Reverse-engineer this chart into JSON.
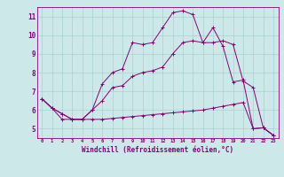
{
  "xlabel": "Windchill (Refroidissement éolien,°C)",
  "xlim": [
    -0.5,
    23.5
  ],
  "ylim": [
    4.5,
    11.5
  ],
  "xticks": [
    0,
    1,
    2,
    3,
    4,
    5,
    6,
    7,
    8,
    9,
    10,
    11,
    12,
    13,
    14,
    15,
    16,
    17,
    18,
    19,
    20,
    21,
    22,
    23
  ],
  "yticks": [
    5,
    6,
    7,
    8,
    9,
    10,
    11
  ],
  "bg_color": "#cce8e8",
  "line_color": "#880077",
  "line1_x": [
    0,
    1,
    2,
    3,
    4,
    5,
    6,
    7,
    8,
    9,
    10,
    11,
    12,
    13,
    14,
    15,
    16,
    17,
    18,
    19,
    20,
    21,
    22,
    23
  ],
  "line1_y": [
    6.6,
    6.1,
    5.5,
    5.5,
    5.5,
    5.5,
    5.5,
    5.55,
    5.6,
    5.65,
    5.7,
    5.75,
    5.8,
    5.85,
    5.9,
    5.95,
    6.0,
    6.1,
    6.2,
    6.3,
    6.4,
    5.0,
    5.05,
    4.65
  ],
  "line2_x": [
    0,
    1,
    2,
    3,
    4,
    5,
    6,
    7,
    8,
    9,
    10,
    11,
    12,
    13,
    14,
    15,
    16,
    17,
    18,
    19,
    20,
    21,
    22,
    23
  ],
  "line2_y": [
    6.6,
    6.1,
    5.8,
    5.5,
    5.5,
    6.0,
    6.5,
    7.2,
    7.3,
    7.8,
    8.0,
    8.1,
    8.3,
    9.0,
    9.6,
    9.7,
    9.6,
    9.6,
    9.7,
    9.5,
    7.55,
    7.2,
    5.05,
    4.65
  ],
  "line3_x": [
    0,
    1,
    2,
    3,
    4,
    5,
    6,
    7,
    8,
    9,
    10,
    11,
    12,
    13,
    14,
    15,
    16,
    17,
    18,
    19,
    20,
    21,
    22,
    23
  ],
  "line3_y": [
    6.6,
    6.1,
    5.8,
    5.5,
    5.5,
    6.0,
    7.4,
    8.0,
    8.2,
    9.6,
    9.5,
    9.6,
    10.4,
    11.2,
    11.3,
    11.1,
    9.6,
    10.4,
    9.4,
    7.5,
    7.6,
    5.0,
    5.05,
    4.65
  ]
}
